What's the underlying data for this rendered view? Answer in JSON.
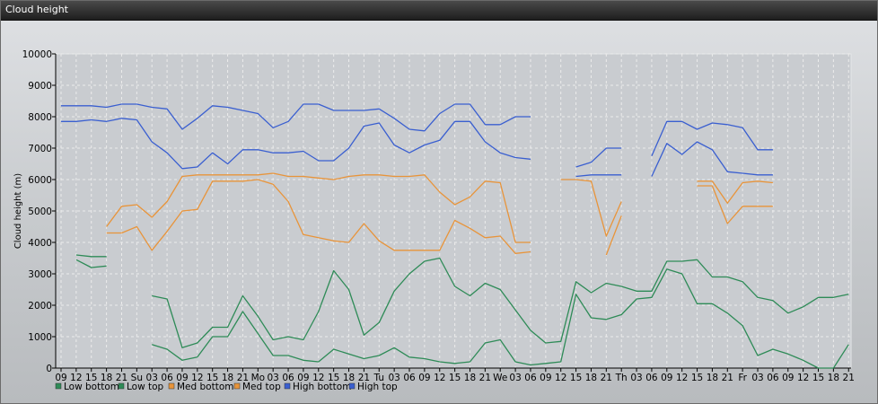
{
  "window": {
    "title": "Cloud height"
  },
  "chart_data": {
    "type": "line",
    "ylabel": "Cloud height (m)",
    "ylim": [
      0,
      10000
    ],
    "yticks": [
      0,
      1000,
      2000,
      3000,
      4000,
      5000,
      6000,
      7000,
      8000,
      9000,
      10000
    ],
    "grid": true,
    "legend_position": "bottom-left",
    "x": [
      "09",
      "12",
      "15",
      "18",
      "21",
      "Su",
      "03",
      "06",
      "09",
      "12",
      "15",
      "18",
      "21",
      "Mo",
      "03",
      "06",
      "09",
      "12",
      "15",
      "18",
      "21",
      "Tu",
      "03",
      "06",
      "09",
      "12",
      "15",
      "18",
      "21",
      "We",
      "03",
      "06",
      "09",
      "12",
      "15",
      "18",
      "21",
      "Th",
      "03",
      "06",
      "09",
      "12",
      "15",
      "18",
      "21",
      "Fr",
      "03",
      "06",
      "09",
      "12",
      "15",
      "18",
      "21"
    ],
    "series": [
      {
        "name": "Low bottom",
        "color": "#2e8b57",
        "values": [
          null,
          3450,
          3200,
          3250,
          null,
          null,
          750,
          600,
          250,
          350,
          1000,
          1000,
          1800,
          1100,
          400,
          400,
          250,
          200,
          600,
          450,
          300,
          400,
          650,
          350,
          300,
          200,
          150,
          200,
          800,
          900,
          200,
          100,
          150,
          200,
          2350,
          1600,
          1550,
          1700,
          2200,
          2250,
          3150,
          3000,
          2050,
          2050,
          1750,
          1350,
          400,
          600,
          450,
          250,
          0,
          0,
          750
        ]
      },
      {
        "name": "Low top",
        "color": "#2e8b57",
        "values": [
          null,
          3600,
          3550,
          3550,
          null,
          null,
          2300,
          2200,
          650,
          800,
          1300,
          1300,
          2300,
          1650,
          900,
          1000,
          900,
          1800,
          3100,
          2500,
          1050,
          1450,
          2450,
          3000,
          3400,
          3500,
          2600,
          2300,
          2700,
          2500,
          1850,
          1200,
          800,
          850,
          2750,
          2400,
          2700,
          2600,
          2450,
          2450,
          3400,
          3400,
          3450,
          2900,
          2900,
          2750,
          2250,
          2150,
          1750,
          1950,
          2250,
          2250,
          2350
        ]
      },
      {
        "name": "Med bottom",
        "color": "#e8943a",
        "values": [
          null,
          null,
          null,
          4300,
          4300,
          4500,
          3750,
          4350,
          5000,
          5050,
          5950,
          5950,
          5950,
          6000,
          5850,
          5300,
          4250,
          4150,
          4050,
          4000,
          4600,
          4050,
          3750,
          3750,
          3750,
          3750,
          4700,
          4450,
          4150,
          4200,
          3650,
          3700,
          null,
          null,
          5550,
          null,
          3600,
          4850,
          null,
          null,
          null,
          null,
          5800,
          5800,
          4600,
          5150,
          5150,
          5150,
          null,
          null,
          null,
          null,
          null
        ]
      },
      {
        "name": "Med top",
        "color": "#e8943a",
        "values": [
          null,
          null,
          null,
          4500,
          5150,
          5200,
          4800,
          5300,
          6100,
          6150,
          6150,
          6150,
          6150,
          6150,
          6200,
          6100,
          6100,
          6050,
          6000,
          6100,
          6150,
          6150,
          6100,
          6100,
          6150,
          5600,
          5200,
          5450,
          5950,
          5900,
          4000,
          4000,
          null,
          6000,
          6000,
          5950,
          4200,
          5300,
          null,
          null,
          null,
          null,
          5950,
          5950,
          5250,
          5900,
          5950,
          5900,
          null,
          null,
          null,
          null,
          null
        ]
      },
      {
        "name": "High bottom",
        "color": "#3a5fd0",
        "values": [
          7850,
          7850,
          7900,
          7850,
          7950,
          7900,
          7200,
          6850,
          6350,
          6400,
          6850,
          6500,
          6950,
          6950,
          6850,
          6850,
          6900,
          6600,
          6600,
          7000,
          7700,
          7800,
          7100,
          6850,
          7100,
          7250,
          7850,
          7850,
          7200,
          6850,
          6700,
          6650,
          null,
          null,
          6100,
          6150,
          6150,
          6150,
          null,
          6100,
          7150,
          6800,
          7200,
          6950,
          6250,
          6200,
          6150,
          6150,
          null,
          null,
          null,
          null,
          null
        ]
      },
      {
        "name": "High top",
        "color": "#3a5fd0",
        "values": [
          8350,
          8350,
          8350,
          8300,
          8400,
          8400,
          8300,
          8250,
          7600,
          7950,
          8350,
          8300,
          8200,
          8100,
          7650,
          7850,
          8400,
          8400,
          8200,
          8200,
          8200,
          8250,
          7950,
          7600,
          7550,
          8100,
          8400,
          8400,
          7750,
          7750,
          8000,
          8000,
          null,
          null,
          6400,
          6550,
          7000,
          7000,
          null,
          6750,
          7850,
          7850,
          7600,
          7800,
          7750,
          7650,
          6950,
          6950,
          null,
          null,
          null,
          null,
          null
        ]
      }
    ]
  }
}
